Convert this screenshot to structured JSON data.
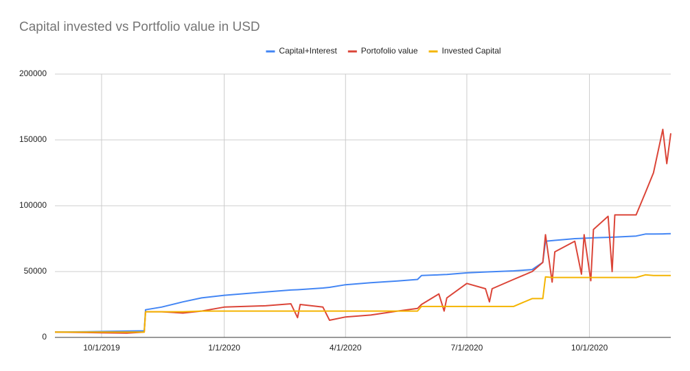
{
  "chart_data": {
    "type": "line",
    "title": "Capital invested vs Portfolio value in USD",
    "x": [
      "8/27/2019",
      "9/15/2019",
      "10/1/2019",
      "10/20/2019",
      "11/2/2019",
      "11/3/2019",
      "11/15/2019",
      "12/1/2019",
      "12/15/2019",
      "1/1/2020",
      "2/1/2020",
      "2/20/2020",
      "2/25/2020",
      "2/27/2020",
      "3/15/2020",
      "3/20/2020",
      "4/1/2020",
      "4/20/2020",
      "5/10/2020",
      "5/25/2020",
      "5/28/2020",
      "6/10/2020",
      "6/14/2020",
      "6/16/2020",
      "7/1/2020",
      "7/15/2020",
      "7/18/2020",
      "7/20/2020",
      "8/5/2020",
      "8/19/2020",
      "8/27/2020",
      "8/29/2020",
      "9/3/2020",
      "9/5/2020",
      "9/20/2020",
      "9/25/2020",
      "9/27/2020",
      "10/2/2020",
      "10/4/2020",
      "10/15/2020",
      "10/18/2020",
      "10/20/2020",
      "11/5/2020",
      "11/12/2020",
      "11/18/2020",
      "11/25/2020",
      "11/28/2020",
      "12/1/2020"
    ],
    "series": [
      {
        "name": "Capital+Interest",
        "color": "#4285f4",
        "values": [
          4000,
          4200,
          4500,
          4800,
          5000,
          21000,
          23000,
          27000,
          30000,
          32000,
          34500,
          36000,
          36200,
          36300,
          37500,
          38000,
          40000,
          41500,
          42800,
          44000,
          47000,
          47500,
          47700,
          47800,
          49000,
          49700,
          49800,
          49900,
          50500,
          51500,
          57000,
          73000,
          73500,
          73700,
          75000,
          75200,
          75300,
          75500,
          75600,
          76000,
          76100,
          76200,
          77000,
          78500,
          78500,
          78600,
          78700,
          78800
        ]
      },
      {
        "name": "Portofolio value",
        "color": "#db4437",
        "values": [
          4000,
          3800,
          3500,
          3300,
          4000,
          19500,
          19500,
          18500,
          20000,
          23000,
          24000,
          25500,
          15000,
          25000,
          23000,
          13000,
          15500,
          17000,
          20000,
          22000,
          25000,
          33000,
          20000,
          30000,
          41000,
          37000,
          27000,
          37000,
          44000,
          50000,
          57000,
          78000,
          42000,
          65000,
          73000,
          48000,
          78000,
          43000,
          82000,
          92000,
          50000,
          93000,
          93000,
          110000,
          125000,
          158000,
          132000,
          155000
        ]
      },
      {
        "name": "Invested Capital",
        "color": "#f4b400",
        "values": [
          4000,
          4000,
          4000,
          4000,
          4000,
          19500,
          19500,
          19500,
          20000,
          20000,
          20000,
          20000,
          20000,
          20000,
          20000,
          20000,
          20000,
          20000,
          20000,
          20000,
          23500,
          23500,
          23500,
          23500,
          23500,
          23500,
          23500,
          23500,
          23500,
          29500,
          29500,
          46000,
          45500,
          45500,
          45500,
          45500,
          45500,
          45500,
          45500,
          45500,
          45500,
          45500,
          45500,
          47500,
          47000,
          47000,
          47000,
          47000
        ]
      }
    ],
    "xlim": [
      "8/27/2019",
      "12/1/2020"
    ],
    "xticks": [
      "10/1/2019",
      "1/1/2020",
      "4/1/2020",
      "7/1/2020",
      "10/1/2020"
    ],
    "ylim": [
      0,
      200000
    ],
    "yticks": [
      0,
      50000,
      100000,
      150000,
      200000
    ],
    "grid": true,
    "legend": "top"
  }
}
